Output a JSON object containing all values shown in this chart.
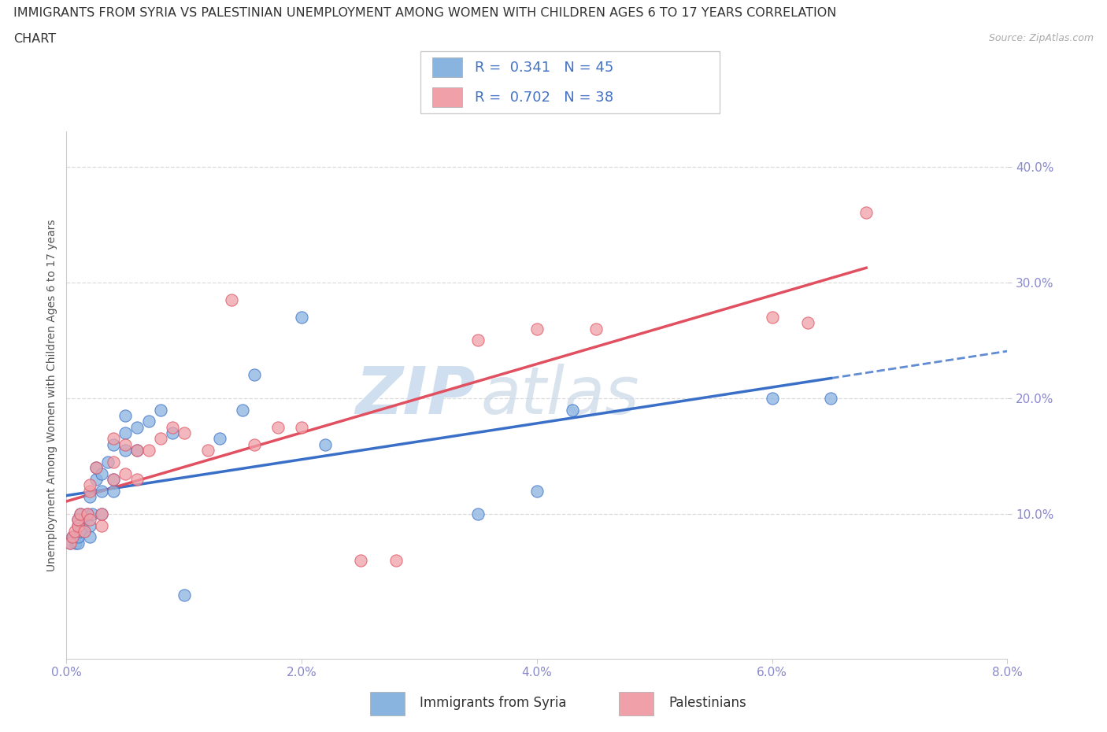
{
  "title_line1": "IMMIGRANTS FROM SYRIA VS PALESTINIAN UNEMPLOYMENT AMONG WOMEN WITH CHILDREN AGES 6 TO 17 YEARS CORRELATION",
  "title_line2": "CHART",
  "source": "Source: ZipAtlas.com",
  "ylabel": "Unemployment Among Women with Children Ages 6 to 17 years",
  "xlim": [
    0.0,
    0.08
  ],
  "ylim": [
    -0.025,
    0.43
  ],
  "xticks": [
    0.0,
    0.02,
    0.04,
    0.06,
    0.08
  ],
  "xticklabels": [
    "0.0%",
    "2.0%",
    "4.0%",
    "6.0%",
    "8.0%"
  ],
  "yticks": [
    0.1,
    0.2,
    0.3,
    0.4
  ],
  "yticklabels": [
    "10.0%",
    "20.0%",
    "30.0%",
    "40.0%"
  ],
  "r_syria": 0.341,
  "n_syria": 45,
  "r_palestinians": 0.702,
  "n_palestinians": 38,
  "syria_color": "#8ab4e0",
  "palestinians_color": "#f0a0a8",
  "syria_line_color": "#3a6fc8",
  "palestinians_line_color": "#e05060",
  "background_color": "#ffffff",
  "watermark_part1": "ZIP",
  "watermark_part2": "atlas",
  "syria_scatter_x": [
    0.0003,
    0.0005,
    0.0006,
    0.0008,
    0.001,
    0.001,
    0.001,
    0.001,
    0.0012,
    0.0012,
    0.0015,
    0.0015,
    0.0018,
    0.002,
    0.002,
    0.002,
    0.0022,
    0.0025,
    0.0025,
    0.003,
    0.003,
    0.003,
    0.0035,
    0.004,
    0.004,
    0.004,
    0.005,
    0.005,
    0.005,
    0.006,
    0.006,
    0.007,
    0.008,
    0.009,
    0.01,
    0.013,
    0.015,
    0.016,
    0.02,
    0.022,
    0.035,
    0.04,
    0.043,
    0.06,
    0.065
  ],
  "syria_scatter_y": [
    0.075,
    0.08,
    0.08,
    0.075,
    0.075,
    0.08,
    0.09,
    0.095,
    0.085,
    0.1,
    0.085,
    0.095,
    0.1,
    0.08,
    0.09,
    0.115,
    0.1,
    0.13,
    0.14,
    0.1,
    0.12,
    0.135,
    0.145,
    0.12,
    0.13,
    0.16,
    0.155,
    0.17,
    0.185,
    0.155,
    0.175,
    0.18,
    0.19,
    0.17,
    0.03,
    0.165,
    0.19,
    0.22,
    0.27,
    0.16,
    0.1,
    0.12,
    0.19,
    0.2,
    0.2
  ],
  "palestinians_scatter_x": [
    0.0003,
    0.0005,
    0.0007,
    0.001,
    0.001,
    0.0012,
    0.0015,
    0.0018,
    0.002,
    0.002,
    0.002,
    0.0025,
    0.003,
    0.003,
    0.004,
    0.004,
    0.004,
    0.005,
    0.005,
    0.006,
    0.006,
    0.007,
    0.008,
    0.009,
    0.01,
    0.012,
    0.014,
    0.016,
    0.018,
    0.02,
    0.025,
    0.028,
    0.035,
    0.04,
    0.045,
    0.06,
    0.063,
    0.068
  ],
  "palestinians_scatter_y": [
    0.075,
    0.08,
    0.085,
    0.09,
    0.095,
    0.1,
    0.085,
    0.1,
    0.095,
    0.12,
    0.125,
    0.14,
    0.09,
    0.1,
    0.13,
    0.145,
    0.165,
    0.135,
    0.16,
    0.13,
    0.155,
    0.155,
    0.165,
    0.175,
    0.17,
    0.155,
    0.285,
    0.16,
    0.175,
    0.175,
    0.06,
    0.06,
    0.25,
    0.26,
    0.26,
    0.27,
    0.265,
    0.36
  ],
  "grid_color": "#d8d8d8",
  "tick_color": "#8888cc",
  "legend_text_color": "#4472c4"
}
